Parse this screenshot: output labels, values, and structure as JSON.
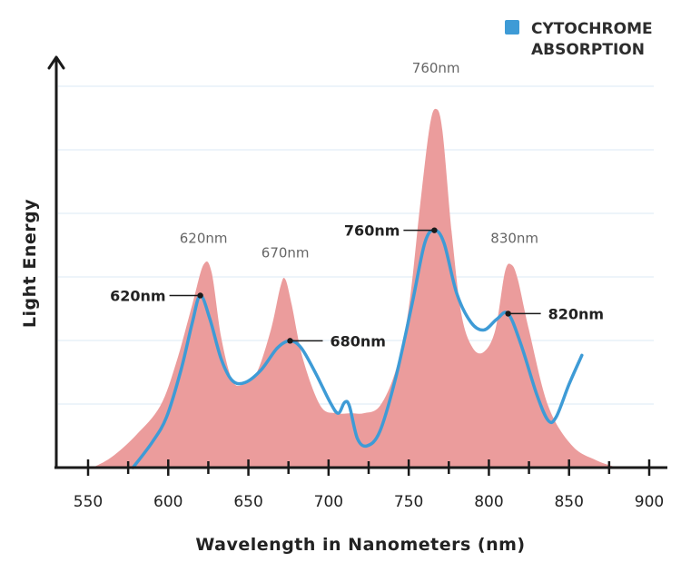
{
  "chart_data": {
    "type": "area",
    "xlabel": "Wavelength in Nanometers (nm)",
    "ylabel": "Light Energy",
    "xlim": [
      530,
      910
    ],
    "ylim": [
      0,
      1
    ],
    "x_ticks": [
      550,
      600,
      650,
      700,
      750,
      800,
      850,
      900
    ],
    "grid": true,
    "legend": {
      "position": "top-right",
      "lines": [
        "CYTOCHROME",
        "ABSORPTION"
      ],
      "color": "#3e9bd6"
    },
    "series": [
      {
        "name": "",
        "style": "filled-area",
        "color": "#eb9c9c",
        "points": [
          [
            553,
            0.0
          ],
          [
            565,
            0.03
          ],
          [
            580,
            0.09
          ],
          [
            595,
            0.17
          ],
          [
            605,
            0.29
          ],
          [
            615,
            0.45
          ],
          [
            622,
            0.56
          ],
          [
            627,
            0.54
          ],
          [
            633,
            0.36
          ],
          [
            640,
            0.24
          ],
          [
            647,
            0.23
          ],
          [
            655,
            0.26
          ],
          [
            664,
            0.38
          ],
          [
            670,
            0.5
          ],
          [
            673,
            0.52
          ],
          [
            677,
            0.45
          ],
          [
            684,
            0.3
          ],
          [
            695,
            0.17
          ],
          [
            705,
            0.15
          ],
          [
            714,
            0.15
          ],
          [
            722,
            0.15
          ],
          [
            732,
            0.17
          ],
          [
            742,
            0.27
          ],
          [
            750,
            0.44
          ],
          [
            757,
            0.72
          ],
          [
            763,
            0.94
          ],
          [
            767,
            0.99
          ],
          [
            771,
            0.93
          ],
          [
            777,
            0.64
          ],
          [
            783,
            0.42
          ],
          [
            790,
            0.33
          ],
          [
            797,
            0.32
          ],
          [
            804,
            0.38
          ],
          [
            810,
            0.54
          ],
          [
            814,
            0.56
          ],
          [
            818,
            0.52
          ],
          [
            825,
            0.38
          ],
          [
            837,
            0.17
          ],
          [
            852,
            0.06
          ],
          [
            867,
            0.02
          ],
          [
            880,
            0.0
          ]
        ]
      },
      {
        "name": "CYTOCHROME ABSORPTION",
        "style": "line",
        "color": "#3e9bd6",
        "points": [
          [
            578,
            0.0
          ],
          [
            590,
            0.07
          ],
          [
            599,
            0.14
          ],
          [
            608,
            0.27
          ],
          [
            615,
            0.4
          ],
          [
            620,
            0.475
          ],
          [
            626,
            0.41
          ],
          [
            633,
            0.3
          ],
          [
            640,
            0.24
          ],
          [
            648,
            0.235
          ],
          [
            658,
            0.27
          ],
          [
            668,
            0.33
          ],
          [
            676,
            0.35
          ],
          [
            683,
            0.33
          ],
          [
            692,
            0.26
          ],
          [
            701,
            0.18
          ],
          [
            706,
            0.15
          ],
          [
            710,
            0.18
          ],
          [
            713,
            0.17
          ],
          [
            718,
            0.08
          ],
          [
            724,
            0.06
          ],
          [
            732,
            0.1
          ],
          [
            742,
            0.25
          ],
          [
            752,
            0.45
          ],
          [
            760,
            0.62
          ],
          [
            766,
            0.655
          ],
          [
            772,
            0.62
          ],
          [
            780,
            0.48
          ],
          [
            789,
            0.4
          ],
          [
            797,
            0.38
          ],
          [
            805,
            0.41
          ],
          [
            812,
            0.425
          ],
          [
            820,
            0.34
          ],
          [
            830,
            0.2
          ],
          [
            837,
            0.13
          ],
          [
            842,
            0.14
          ],
          [
            850,
            0.23
          ],
          [
            858,
            0.31
          ]
        ]
      }
    ],
    "peak_labels": [
      {
        "text": "620nm",
        "x": 622,
        "y": 0.62
      },
      {
        "text": "670nm",
        "x": 673,
        "y": 0.58
      },
      {
        "text": "760nm",
        "x": 767,
        "y": 1.09
      },
      {
        "text": "830nm",
        "x": 816,
        "y": 0.62
      }
    ],
    "callouts": [
      {
        "text": "620nm",
        "x": 620,
        "y": 0.475,
        "side": "left"
      },
      {
        "text": "680nm",
        "x": 676,
        "y": 0.35,
        "side": "right"
      },
      {
        "text": "760nm",
        "x": 766,
        "y": 0.655,
        "side": "left"
      },
      {
        "text": "820nm",
        "x": 812,
        "y": 0.425,
        "side": "right"
      }
    ]
  }
}
